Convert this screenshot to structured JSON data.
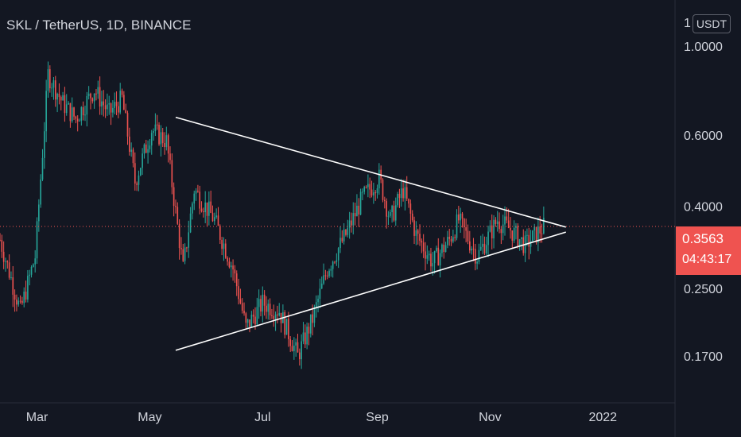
{
  "header": {
    "title": "SKL / TetherUS, 1D, BINANCE"
  },
  "price_axis": {
    "unit_multiplier": "1",
    "currency": "USDT"
  },
  "last_price": {
    "value": "0.3563",
    "countdown": "04:43:17",
    "color": "#ef5350"
  },
  "colors": {
    "up": "#26a69a",
    "down": "#ef5350",
    "background": "#131722",
    "trendline": "#ffffff",
    "text": "#d1d4dc"
  },
  "chart_data": {
    "type": "candlestick",
    "title": "SKL / TetherUS, 1D, BINANCE",
    "y_scale": "log",
    "ylim": [
      0.13,
      1.3
    ],
    "y_ticks": [
      "1.0000",
      "0.6000",
      "0.4000",
      "0.2500",
      "0.1700"
    ],
    "x_ticks": [
      "Mar",
      "May",
      "Jul",
      "Sep",
      "Nov",
      "2022"
    ],
    "x_range": [
      "2021-02-09",
      "2022-02-09"
    ],
    "last_price": 0.3563,
    "closes": [
      {
        "date": "2021-02-09",
        "close": 0.33
      },
      {
        "date": "2021-02-20",
        "close": 0.22
      },
      {
        "date": "2021-02-28",
        "close": 0.3
      },
      {
        "date": "2021-03-07",
        "close": 0.85
      },
      {
        "date": "2021-03-15",
        "close": 0.72
      },
      {
        "date": "2021-03-22",
        "close": 0.66
      },
      {
        "date": "2021-04-01",
        "close": 0.78
      },
      {
        "date": "2021-04-09",
        "close": 0.68
      },
      {
        "date": "2021-04-16",
        "close": 0.74
      },
      {
        "date": "2021-04-23",
        "close": 0.46
      },
      {
        "date": "2021-05-02",
        "close": 0.62
      },
      {
        "date": "2021-05-10",
        "close": 0.58
      },
      {
        "date": "2021-05-19",
        "close": 0.28
      },
      {
        "date": "2021-05-25",
        "close": 0.44
      },
      {
        "date": "2021-06-05",
        "close": 0.37
      },
      {
        "date": "2021-06-15",
        "close": 0.28
      },
      {
        "date": "2021-06-22",
        "close": 0.2
      },
      {
        "date": "2021-07-01",
        "close": 0.23
      },
      {
        "date": "2021-07-10",
        "close": 0.22
      },
      {
        "date": "2021-07-20",
        "close": 0.17
      },
      {
        "date": "2021-07-28",
        "close": 0.21
      },
      {
        "date": "2021-08-05",
        "close": 0.28
      },
      {
        "date": "2021-08-15",
        "close": 0.34
      },
      {
        "date": "2021-08-24",
        "close": 0.42
      },
      {
        "date": "2021-09-02",
        "close": 0.47
      },
      {
        "date": "2021-09-08",
        "close": 0.37
      },
      {
        "date": "2021-09-15",
        "close": 0.44
      },
      {
        "date": "2021-09-22",
        "close": 0.34
      },
      {
        "date": "2021-10-01",
        "close": 0.29
      },
      {
        "date": "2021-10-10",
        "close": 0.33
      },
      {
        "date": "2021-10-15",
        "close": 0.37
      },
      {
        "date": "2021-10-25",
        "close": 0.3
      },
      {
        "date": "2021-11-05",
        "close": 0.37
      },
      {
        "date": "2021-11-12",
        "close": 0.35
      },
      {
        "date": "2021-11-20",
        "close": 0.32
      },
      {
        "date": "2021-11-30",
        "close": 0.3563
      }
    ],
    "trendlines": [
      {
        "name": "upper",
        "from": {
          "date": "2021-05-15",
          "price": 0.665
        },
        "to": {
          "date": "2021-12-12",
          "price": 0.355
        }
      },
      {
        "name": "lower",
        "from": {
          "date": "2021-05-15",
          "price": 0.1755
        },
        "to": {
          "date": "2021-12-12",
          "price": 0.345
        }
      }
    ],
    "grid": false,
    "legend": "none"
  }
}
